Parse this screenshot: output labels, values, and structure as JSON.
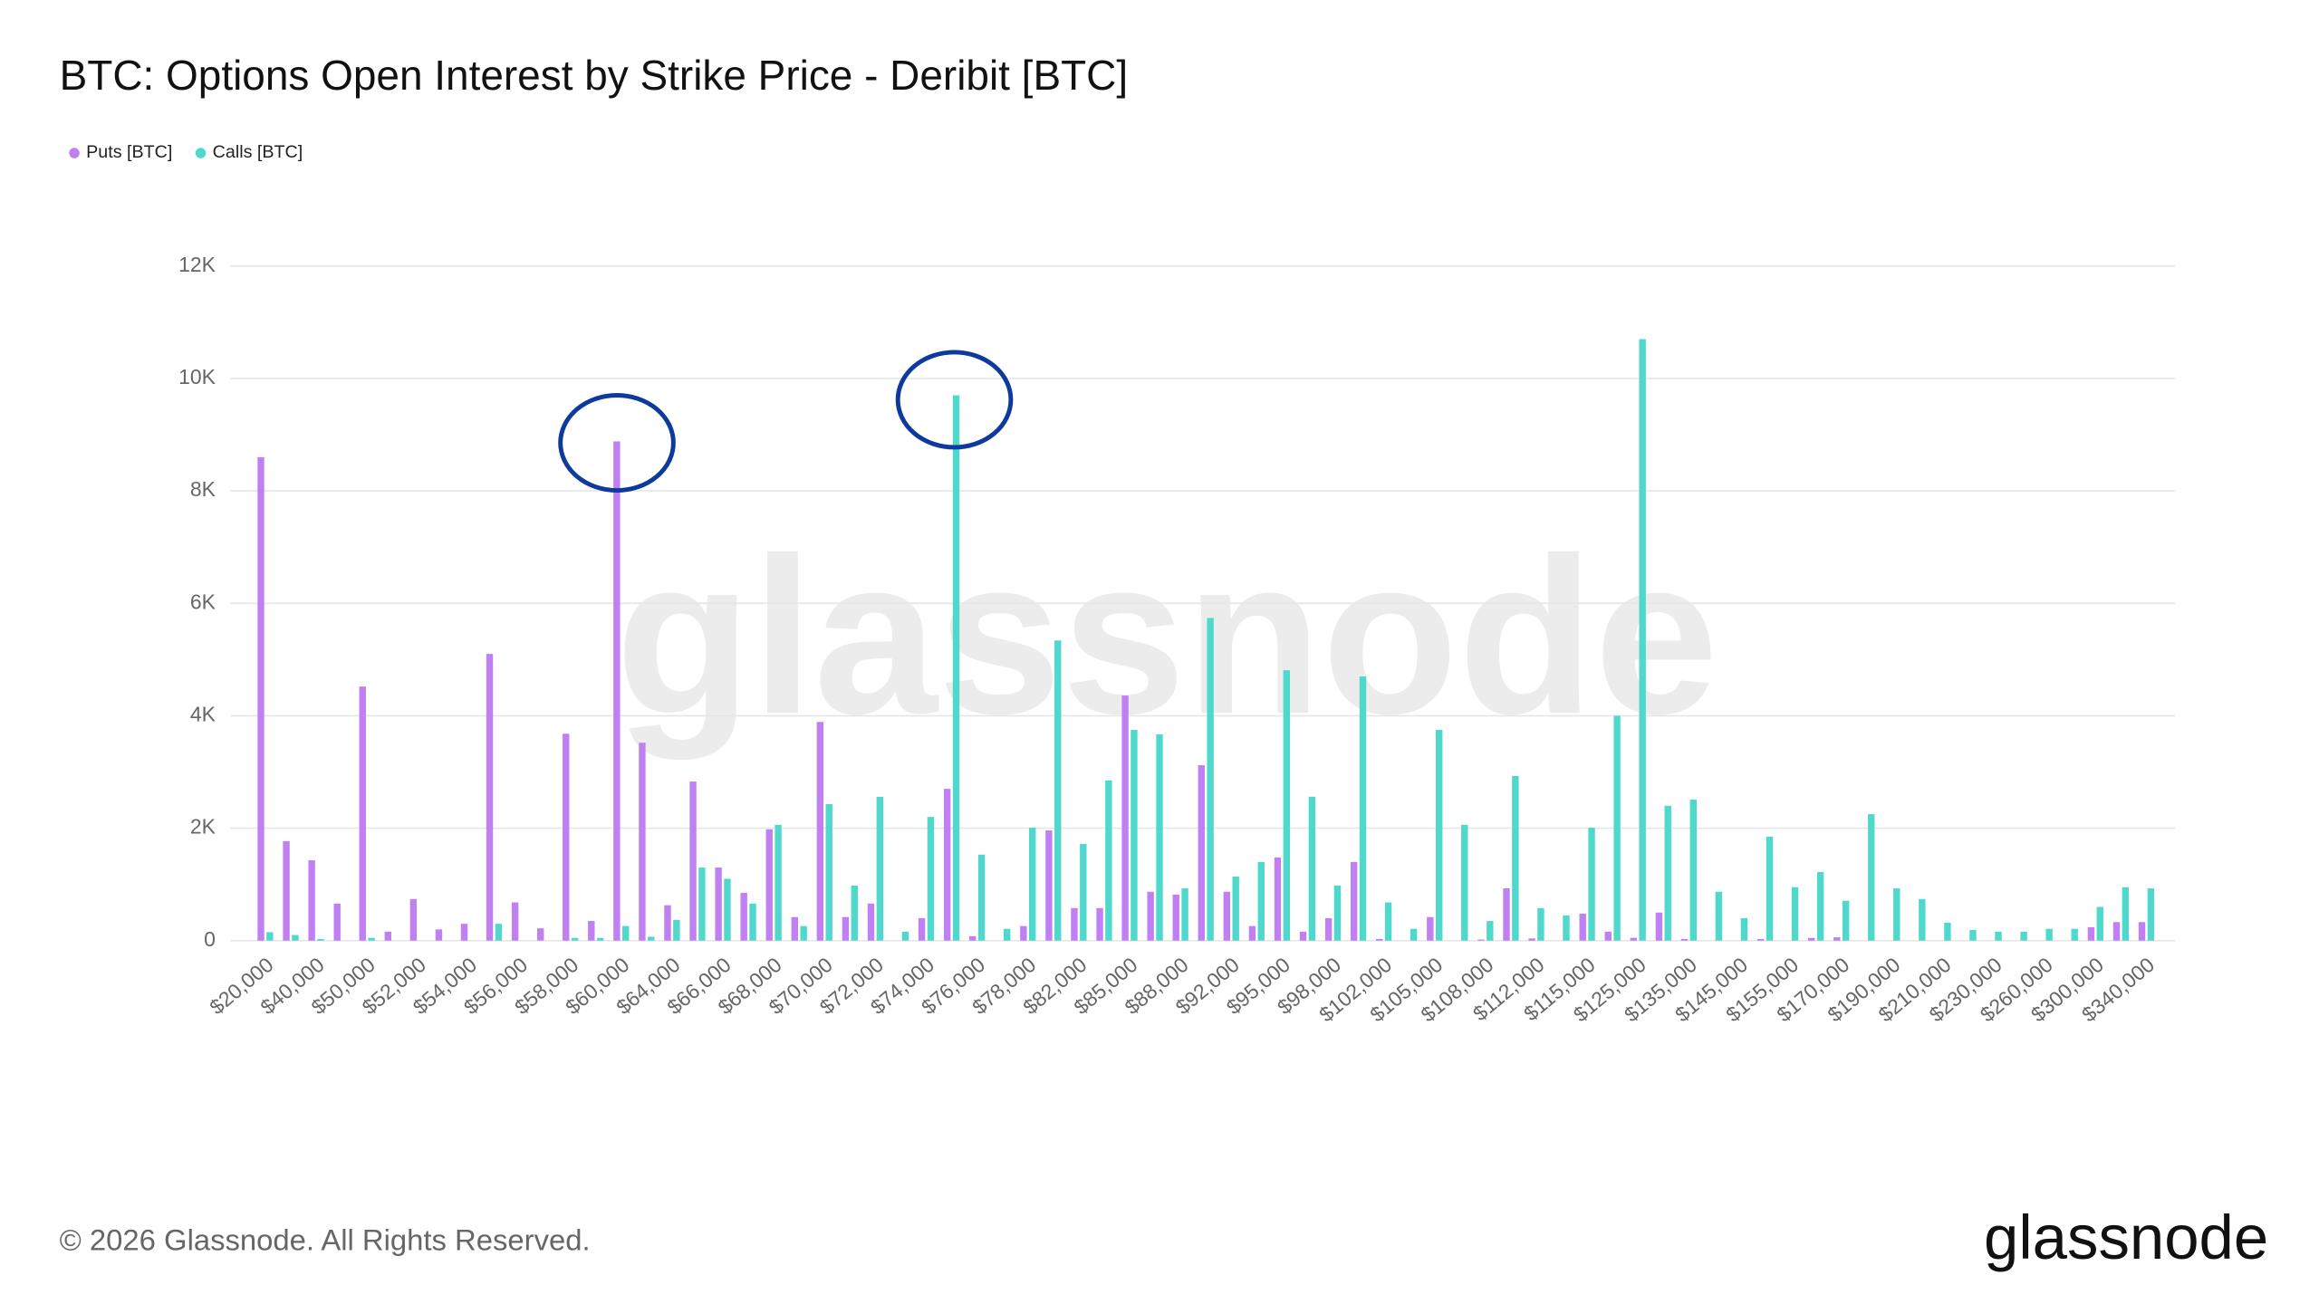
{
  "chart_data": {
    "type": "bar",
    "title": "BTC: Options Open Interest by Strike Price - Deribit [BTC]",
    "watermark": "glassnode",
    "categories": [
      "$20,000",
      null,
      "$40,000",
      null,
      "$50,000",
      null,
      "$52,000",
      null,
      "$54,000",
      null,
      "$56,000",
      null,
      "$58,000",
      null,
      "$60,000",
      null,
      "$64,000",
      null,
      "$66,000",
      null,
      "$68,000",
      null,
      "$70,000",
      null,
      "$72,000",
      null,
      "$74,000",
      null,
      "$76,000",
      null,
      "$78,000",
      null,
      "$82,000",
      null,
      "$85,000",
      null,
      "$88,000",
      null,
      "$92,000",
      null,
      "$95,000",
      null,
      "$98,000",
      null,
      "$102,000",
      null,
      "$105,000",
      null,
      "$108,000",
      null,
      "$112,000",
      null,
      "$115,000",
      null,
      "$125,000",
      null,
      "$135,000",
      null,
      "$145,000",
      null,
      "$155,000",
      null,
      "$170,000",
      null,
      "$190,000",
      null,
      "$210,000",
      null,
      "$230,000",
      null,
      "$260,000",
      null,
      "$300,000",
      null,
      "$340,000"
    ],
    "series": [
      {
        "name": "Puts [BTC]",
        "color": "#c07ff2",
        "values": [
          8600,
          1770,
          1430,
          660,
          4520,
          160,
          740,
          200,
          300,
          5100,
          680,
          220,
          3680,
          350,
          8880,
          3520,
          630,
          2830,
          1300,
          850,
          1980,
          420,
          3890,
          420,
          660,
          0,
          400,
          2700,
          80,
          0,
          260,
          1960,
          580,
          580,
          4360,
          870,
          820,
          3120,
          870,
          260,
          1480,
          160,
          400,
          1400,
          30,
          0,
          420,
          0,
          20,
          930,
          40,
          0,
          480,
          160,
          50,
          500,
          30,
          0,
          0,
          30,
          0,
          50,
          60,
          0,
          0,
          0,
          0,
          0,
          0,
          0,
          0,
          0,
          240,
          330,
          330
        ]
      },
      {
        "name": "Calls [BTC]",
        "color": "#4fd8cc",
        "values": [
          150,
          100,
          30,
          0,
          50,
          0,
          0,
          0,
          0,
          300,
          0,
          0,
          50,
          50,
          260,
          70,
          370,
          1300,
          1100,
          660,
          2060,
          260,
          2430,
          980,
          2560,
          160,
          2200,
          9700,
          1530,
          210,
          2010,
          5340,
          1720,
          2850,
          3750,
          3670,
          930,
          5740,
          1140,
          1400,
          4810,
          2560,
          980,
          4700,
          680,
          210,
          3750,
          2060,
          350,
          2930,
          580,
          450,
          2010,
          4000,
          10700,
          2400,
          2510,
          870,
          400,
          1850,
          950,
          1220,
          710,
          2250,
          930,
          740,
          320,
          190,
          160,
          160,
          210,
          210,
          600,
          950,
          930
        ]
      }
    ],
    "ylim": [
      0,
      12000
    ],
    "yticks": [
      0,
      {
        "value": 2000,
        "label": "2K"
      },
      {
        "value": 4000,
        "label": "4K"
      },
      {
        "value": 6000,
        "label": "6K"
      },
      {
        "value": 8000,
        "label": "8K"
      },
      {
        "value": 10000,
        "label": "10K"
      },
      {
        "value": 12000,
        "label": "12K"
      }
    ],
    "grid": true,
    "legend": "top-left"
  },
  "footer": {
    "copyright": "© 2026 Glassnode. All Rights Reserved.",
    "logo": "glassnode"
  }
}
